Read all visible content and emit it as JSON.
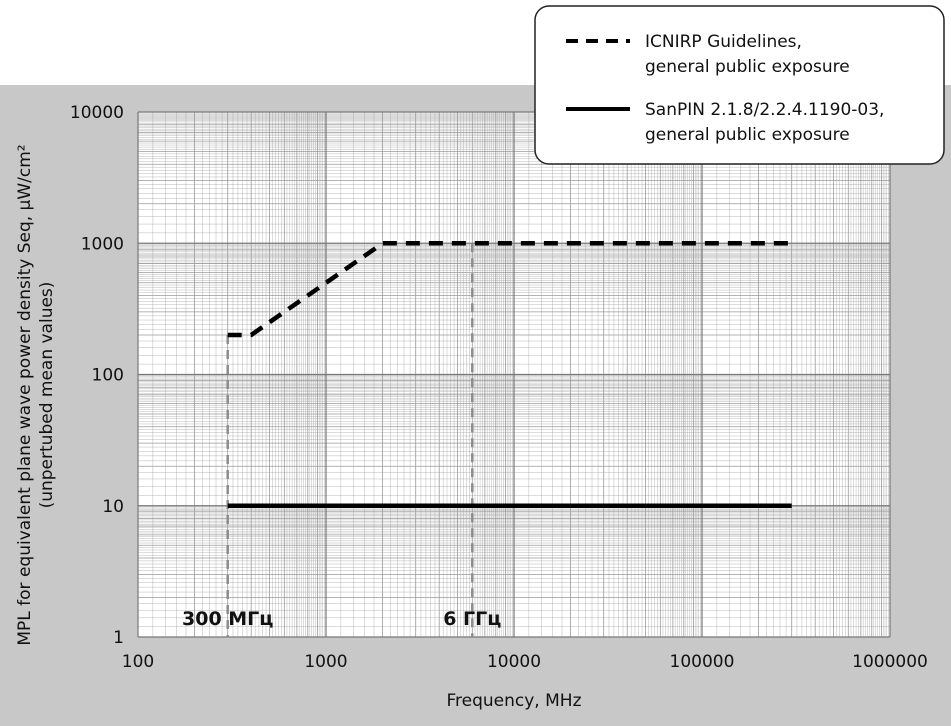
{
  "chart_data": {
    "type": "line",
    "x_scale": "log",
    "y_scale": "log",
    "xlim": [
      100,
      1000000
    ],
    "ylim": [
      1,
      10000
    ],
    "xlabel": "Frequency, MHz",
    "ylabel_lines": [
      "MPL for equivalent plane wave power density Seq, μW/cm²",
      "(unpertubed mean values)"
    ],
    "x_ticks": [
      "100",
      "1000",
      "10000",
      "100000",
      "1000000"
    ],
    "y_ticks": [
      "1",
      "10",
      "100",
      "1000",
      "10000"
    ],
    "grid": true,
    "legend_position": "top-right",
    "series": [
      {
        "name_lines": [
          "ICNIRP Guidelines,",
          "general public exposure"
        ],
        "style": "dashed",
        "color": "#000000",
        "x": [
          300,
          400,
          2000,
          300000
        ],
        "y": [
          200,
          200,
          1000,
          1000
        ]
      },
      {
        "name_lines": [
          "SanPIN 2.1.8/2.2.4.1190-03,",
          "general public exposure"
        ],
        "style": "solid",
        "color": "#000000",
        "x": [
          300,
          300000
        ],
        "y": [
          10,
          10
        ]
      }
    ],
    "annotations": [
      {
        "text": "300 МГц",
        "x": 300
      },
      {
        "text": "6 ГГц",
        "x": 6000
      }
    ],
    "colors": {
      "frame_background": "#c8c8c8",
      "plot_background": "#ffffff",
      "grid": "#9a9a9a",
      "marker_line": "#8c8c8c"
    }
  }
}
